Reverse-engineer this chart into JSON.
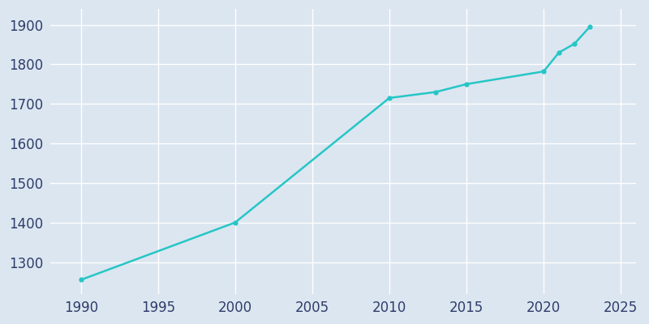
{
  "years": [
    1990,
    2000,
    2010,
    2013,
    2015,
    2020,
    2021,
    2022,
    2023
  ],
  "population": [
    1255,
    1400,
    1715,
    1730,
    1750,
    1782,
    1830,
    1852,
    1895
  ],
  "line_color": "#26c6c6",
  "line_width": 1.8,
  "marker": "o",
  "marker_size": 3.5,
  "bg_color": "#dce6f0",
  "grid_color": "#ffffff",
  "xlim": [
    1988,
    2026
  ],
  "ylim": [
    1220,
    1940
  ],
  "xticks": [
    1990,
    1995,
    2000,
    2005,
    2010,
    2015,
    2020,
    2025
  ],
  "yticks": [
    1300,
    1400,
    1500,
    1600,
    1700,
    1800,
    1900
  ],
  "tick_label_color": "#2e3d6b",
  "tick_fontsize": 12
}
